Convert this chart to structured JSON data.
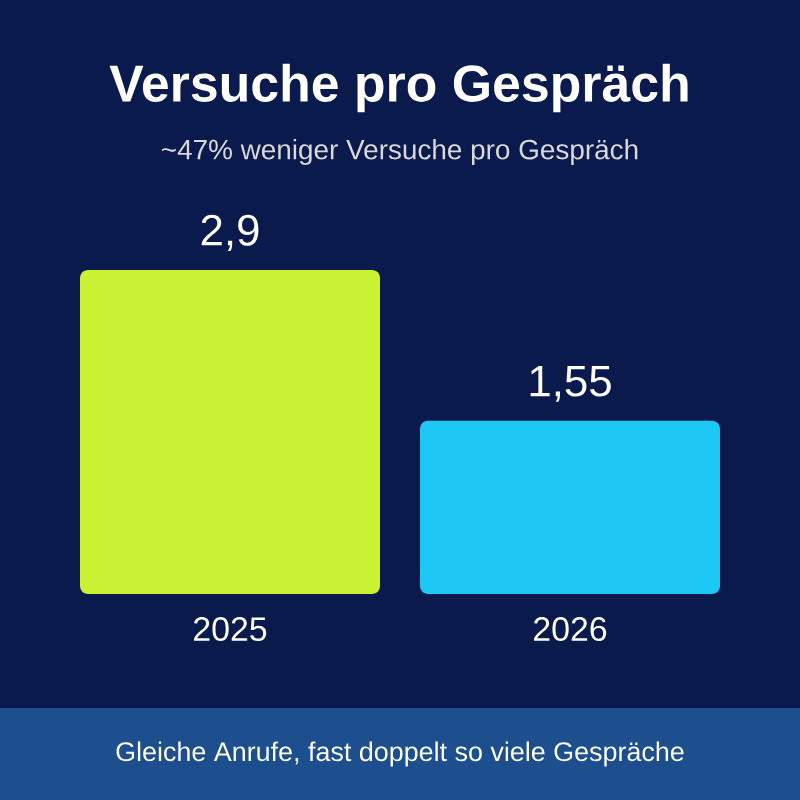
{
  "chart_data": {
    "type": "bar",
    "title": "Versuche pro Gespräch",
    "subtitle": "~47% weniger Versuche pro Gespräch",
    "categories": [
      "2025",
      "2026"
    ],
    "values": [
      2.9,
      1.55
    ],
    "colors": [
      "#c8f232",
      "#1ec8f5"
    ],
    "value_labels": [
      "2,9",
      "1,55"
    ],
    "annotations": [
      "Gleiche Anrufe, fast doppelt so viele Gespräche"
    ]
  }
}
